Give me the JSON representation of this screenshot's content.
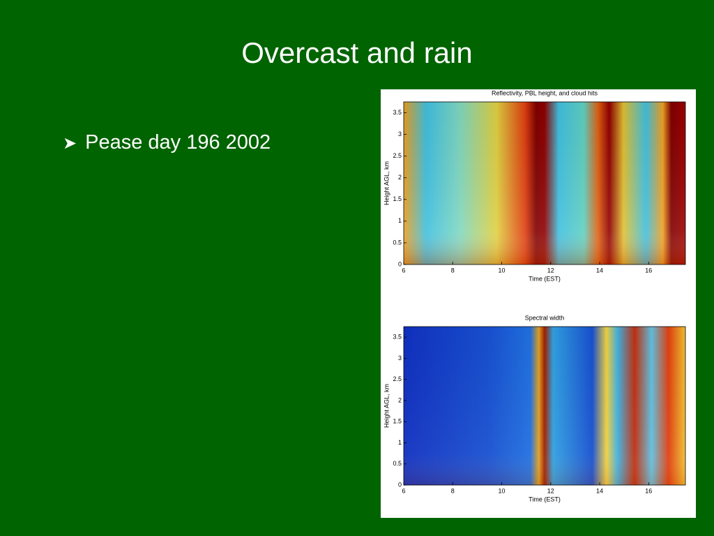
{
  "slide": {
    "title": "Overcast and rain",
    "bullets": [
      "Pease day 196 2002"
    ]
  },
  "figure": {
    "panels": [
      {
        "title": "Reflectivity, PBL height, and cloud hits",
        "xlabel": "Time (EST)",
        "ylabel": "Height AGL, km",
        "xlim": [
          6,
          17.5
        ],
        "ylim": [
          0,
          3.75
        ],
        "xticks": [
          6,
          8,
          10,
          12,
          14,
          16
        ],
        "yticks": [
          0,
          0.5,
          1,
          1.5,
          2,
          2.5,
          3,
          3.5
        ]
      },
      {
        "title": "Spectral width",
        "xlabel": "Time (EST)",
        "ylabel": "Height AGL, km",
        "xlim": [
          6,
          17.5
        ],
        "ylim": [
          0,
          3.75
        ],
        "xticks": [
          6,
          8,
          10,
          12,
          14,
          16
        ],
        "yticks": [
          0,
          0.5,
          1,
          1.5,
          2,
          2.5,
          3,
          3.5
        ]
      }
    ]
  }
}
